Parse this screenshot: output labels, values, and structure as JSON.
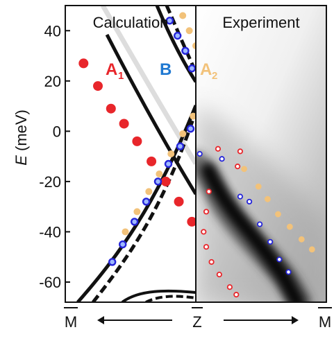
{
  "chart_data": {
    "type": "scatter",
    "title": "",
    "panels": [
      {
        "name": "Calculation"
      },
      {
        "name": "Experiment"
      }
    ],
    "ylabel": {
      "symbol": "E",
      "unit": "(meV)"
    },
    "ylim": [
      -68,
      50
    ],
    "yticks": [
      40,
      20,
      0,
      -20,
      -40,
      -60
    ],
    "xlabels": {
      "left": "M",
      "center": "Z",
      "right": "M"
    },
    "band_labels": [
      {
        "main": "A",
        "sub": "1",
        "color": "#e8262b"
      },
      {
        "main": "B",
        "sub": "",
        "color": "#1f78d1"
      },
      {
        "main": "A",
        "sub": "2",
        "color": "#f2c27a"
      }
    ],
    "colors": {
      "A1": "#e8262b",
      "B": "#2424d9",
      "A2": "#f2c27a",
      "band_line": "#111111",
      "frame": "#111111"
    },
    "calculation_series": [
      {
        "name": "A1",
        "points": [
          [
            0.14,
            27
          ],
          [
            0.25,
            18
          ],
          [
            0.35,
            9
          ],
          [
            0.45,
            3
          ],
          [
            0.55,
            -4
          ],
          [
            0.66,
            -12
          ],
          [
            0.77,
            -20
          ],
          [
            0.87,
            -28
          ],
          [
            0.97,
            -36
          ]
        ]
      },
      {
        "name": "B",
        "points": [
          [
            0.8,
            44
          ],
          [
            0.86,
            38
          ],
          [
            0.92,
            32
          ],
          [
            0.97,
            25
          ],
          [
            0.96,
            1
          ],
          [
            0.88,
            -6
          ],
          [
            0.79,
            -13
          ],
          [
            0.71,
            -20
          ],
          [
            0.62,
            -28
          ],
          [
            0.53,
            -36
          ],
          [
            0.44,
            -45
          ],
          [
            0.36,
            -52
          ]
        ]
      },
      {
        "name": "A2",
        "points": [
          [
            0.9,
            46
          ],
          [
            0.95,
            40
          ],
          [
            1.0,
            34
          ],
          [
            0.98,
            6
          ],
          [
            0.9,
            -1
          ],
          [
            0.81,
            -9
          ],
          [
            0.72,
            -17
          ],
          [
            0.64,
            -24
          ],
          [
            0.55,
            -32
          ],
          [
            0.46,
            -40
          ]
        ]
      }
    ],
    "experiment_series": [
      {
        "name": "A1",
        "points": [
          [
            0.17,
            -7
          ],
          [
            0.34,
            -8
          ],
          [
            0.32,
            -14
          ],
          [
            0.1,
            -24
          ],
          [
            0.08,
            -32
          ],
          [
            0.06,
            -40
          ],
          [
            0.08,
            -46
          ],
          [
            0.12,
            -52
          ],
          [
            0.18,
            -57
          ],
          [
            0.26,
            -62
          ],
          [
            0.31,
            -65
          ]
        ]
      },
      {
        "name": "B",
        "points": [
          [
            0.03,
            -9
          ],
          [
            0.2,
            -11
          ],
          [
            0.34,
            -26
          ],
          [
            0.41,
            -28
          ],
          [
            0.49,
            -37
          ],
          [
            0.57,
            -44
          ],
          [
            0.64,
            -51
          ],
          [
            0.71,
            -56
          ]
        ]
      },
      {
        "name": "A2",
        "points": [
          [
            0.37,
            -15
          ],
          [
            0.48,
            -22
          ],
          [
            0.55,
            -27
          ],
          [
            0.63,
            -33
          ],
          [
            0.72,
            -38
          ],
          [
            0.81,
            -43
          ],
          [
            0.89,
            -47
          ]
        ]
      }
    ]
  }
}
